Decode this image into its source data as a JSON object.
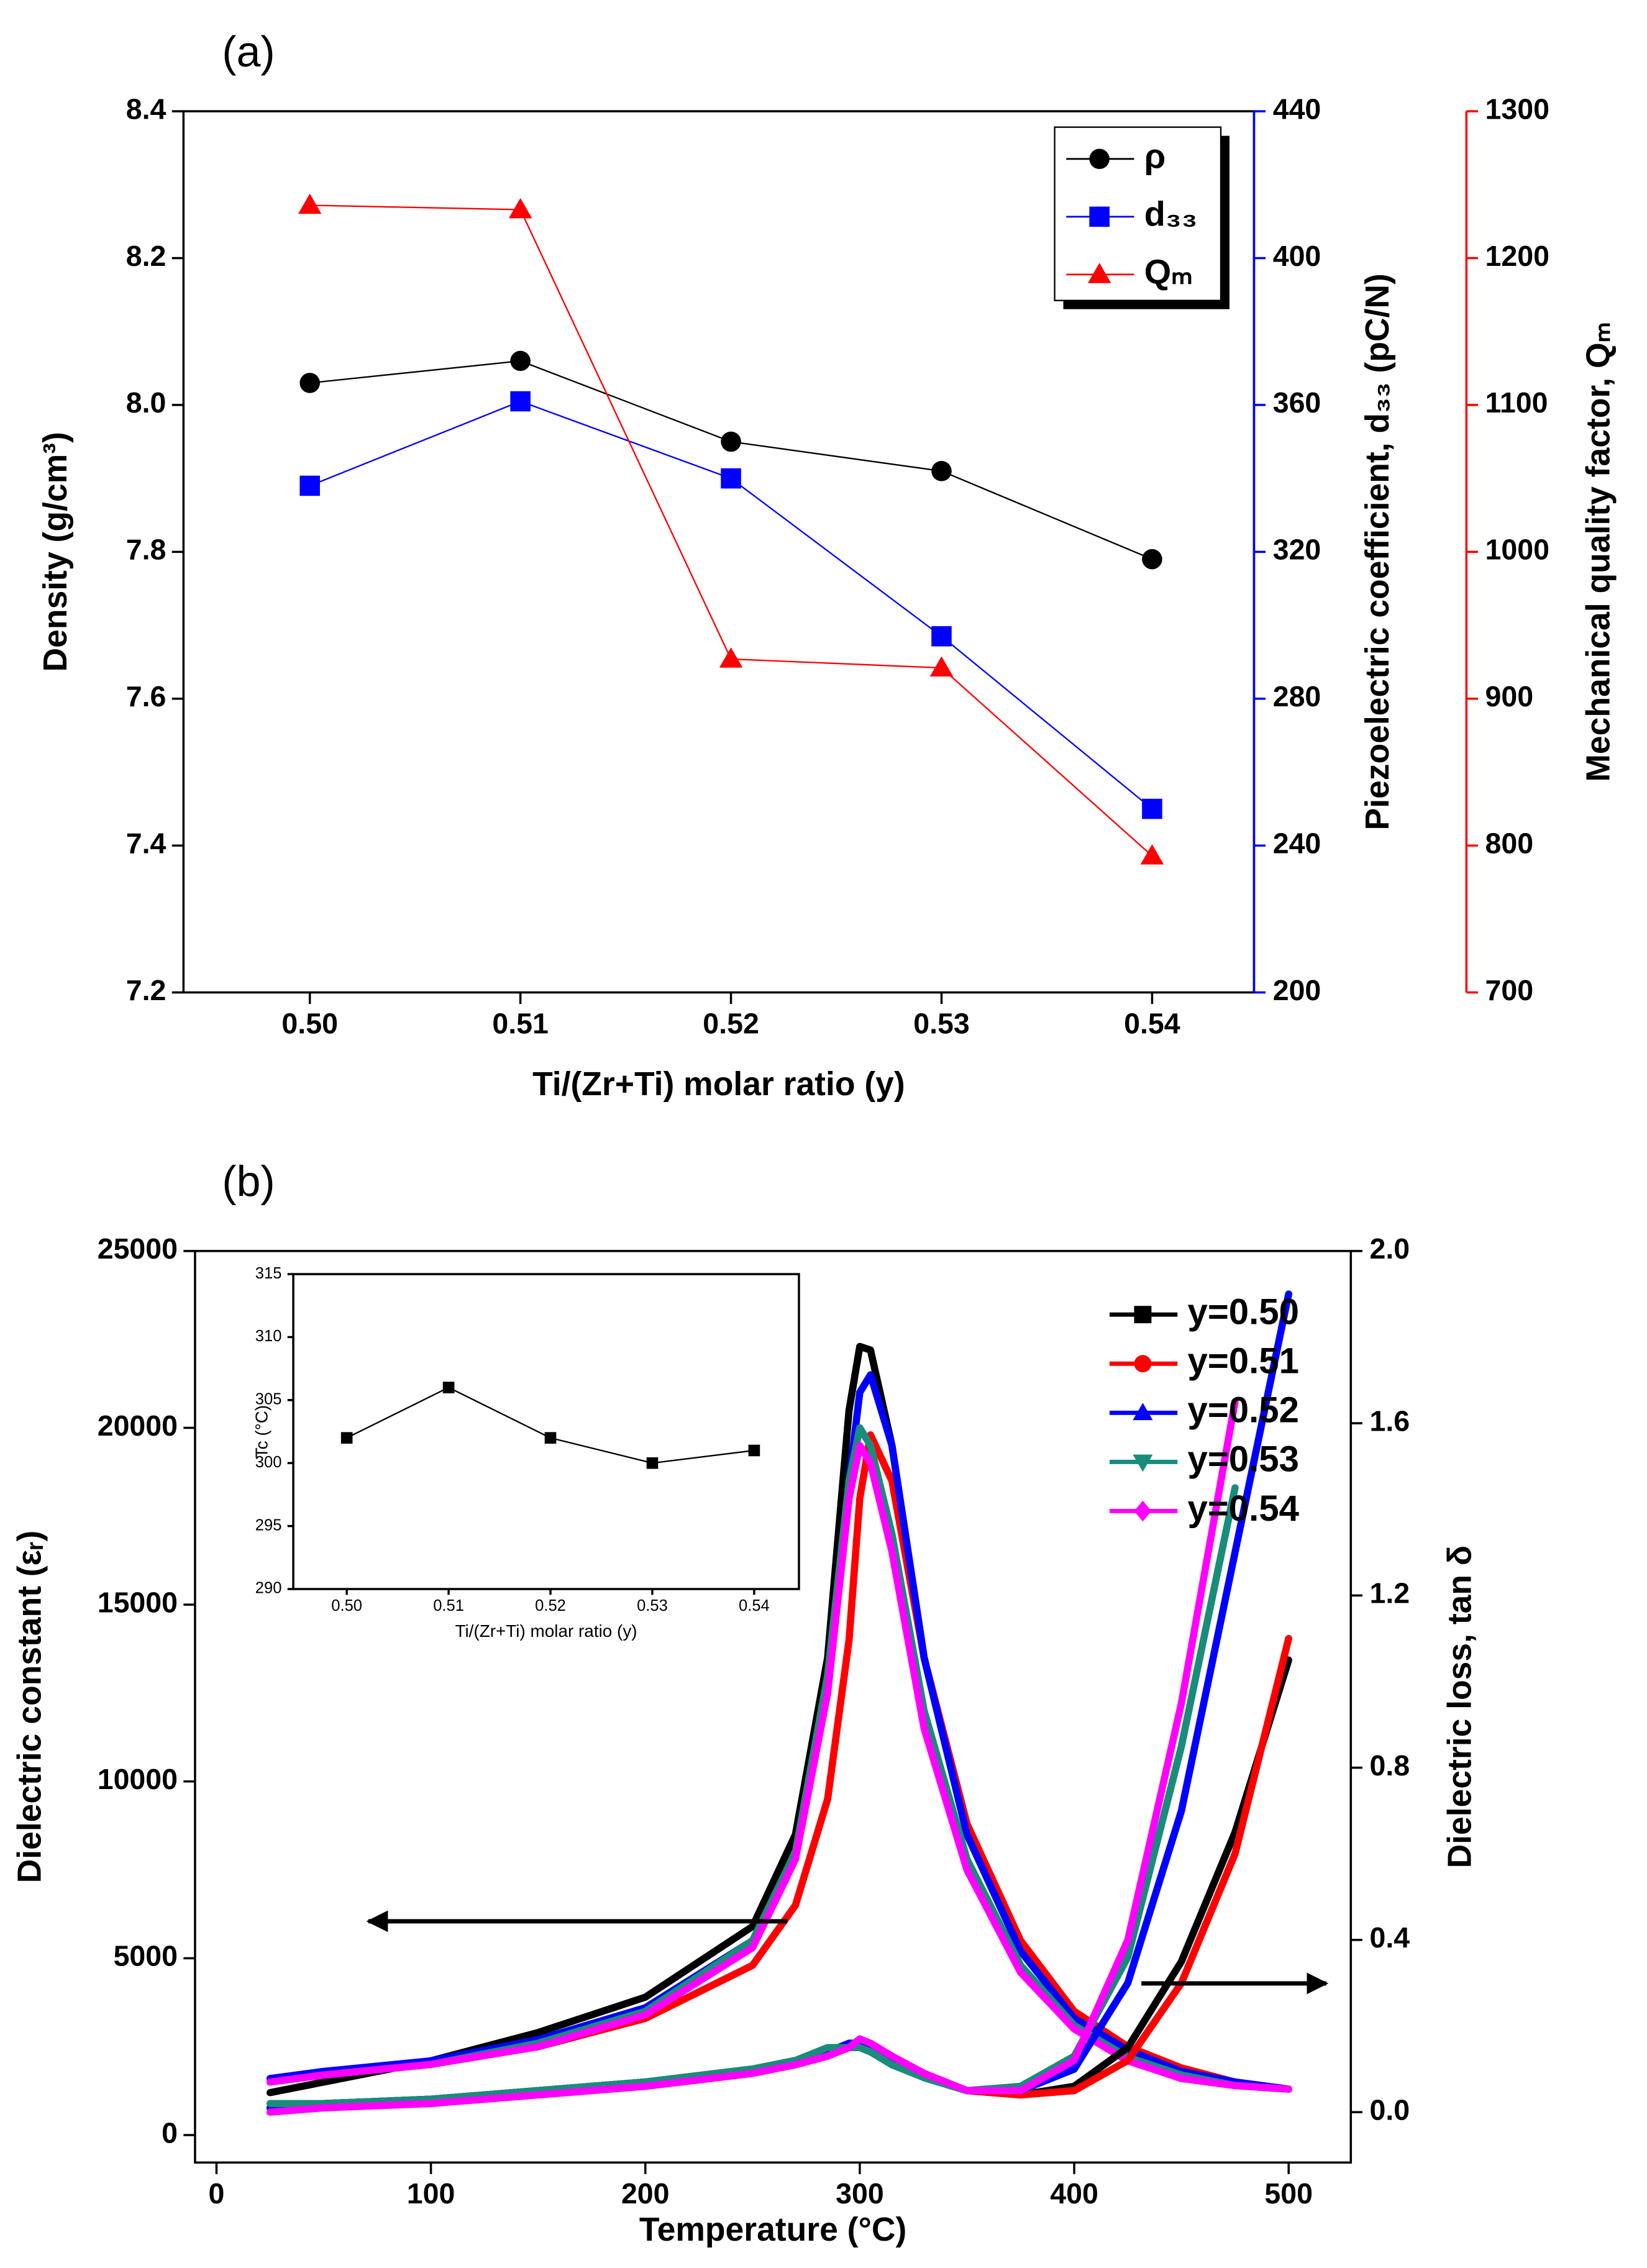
{
  "chart_data": [
    {
      "type": "line",
      "panel_label": "(a)",
      "xlabel": "Ti/(Zr+Ti) molar ratio (y)",
      "ylabel": "Density (g/cm³)",
      "y2label": "Piezoelectric coefficient, d₃₃ (pC/N)",
      "y3label": "Mechanical quality factor, Qₘ",
      "categories": [
        "0.50",
        "0.51",
        "0.52",
        "0.53",
        "0.54"
      ],
      "ylim": [
        7.2,
        8.4
      ],
      "yticks": [
        7.2,
        7.4,
        7.6,
        7.8,
        {
          "value": 8,
          "label": "8.0"
        },
        8.2,
        8.4
      ],
      "y2lim": [
        200,
        440
      ],
      "y2ticks": [
        200,
        240,
        280,
        320,
        360,
        400,
        440
      ],
      "y2color": "#0000ff",
      "y3lim": [
        700,
        1300
      ],
      "y3ticks": [
        700,
        800,
        900,
        1000,
        1100,
        1200,
        1300
      ],
      "y3color": "#ff0000",
      "legend": "upper right",
      "series": [
        {
          "name": "ρ",
          "color": "#000000",
          "marker": "circle",
          "values": [
            8.03,
            8.06,
            7.95,
            7.91,
            7.79
          ]
        },
        {
          "name": "d₃₃",
          "color": "#0000ff",
          "marker": "square",
          "axis": "y2",
          "values": [
            338,
            361,
            340,
            297,
            250
          ]
        },
        {
          "name": "Qₘ",
          "color": "#ff0000",
          "marker": "triangle",
          "axis": "y3",
          "values": [
            1236,
            1233,
            927,
            921,
            793
          ]
        }
      ]
    },
    {
      "type": "line",
      "panel_label": "(b)",
      "xlabel": "Temperature (°C)",
      "ylabel": "Dielectric constant (εᵣ)",
      "y2label": "Dielectric loss, tan δ",
      "x": [
        25,
        50,
        100,
        150,
        200,
        250,
        270,
        285,
        295,
        300,
        305,
        315,
        330,
        350,
        375,
        400,
        425,
        450,
        475,
        500
      ],
      "xlim": [
        -10,
        529
      ],
      "xticks": [
        0,
        100,
        200,
        300,
        400,
        500
      ],
      "ylim": [
        -776,
        25000
      ],
      "yticks": [
        0,
        5000,
        10000,
        15000,
        20000,
        25000
      ],
      "y2lim": [
        -0.117,
        2.0
      ],
      "y2ticks": [
        {
          "value": 0,
          "label": "0.0"
        },
        0.4,
        0.8,
        1.2,
        1.6,
        {
          "value": 2,
          "label": "2.0"
        }
      ],
      "legend": "upper right",
      "series": [
        {
          "name": "y=0.50",
          "color": "#000000",
          "marker": "square",
          "values": [
            1200,
            1500,
            2100,
            2900,
            3900,
            5900,
            8500,
            13500,
            20500,
            22300,
            22200,
            19500,
            13500,
            8500,
            5200,
            3300,
            2400,
            1800,
            1500,
            1300
          ]
        },
        {
          "name": "y=0.51",
          "color": "#ff0000",
          "marker": "circle",
          "values": [
            1500,
            1700,
            2000,
            2500,
            3300,
            4800,
            6500,
            9500,
            14000,
            18000,
            19800,
            18500,
            13500,
            8800,
            5500,
            3500,
            2500,
            1900,
            1500,
            1300
          ]
        },
        {
          "name": "y=0.52",
          "color": "#0000ff",
          "marker": "triangle",
          "values": [
            1600,
            1800,
            2100,
            2700,
            3600,
            5500,
            8000,
            12500,
            18500,
            21000,
            21500,
            19500,
            13500,
            8500,
            5200,
            3300,
            2400,
            1800,
            1500,
            1300
          ]
        },
        {
          "name": "y=0.53",
          "color": "#1a8c7c",
          "marker": "triangle-down",
          "values": [
            1500,
            1700,
            2000,
            2600,
            3500,
            5500,
            8000,
            13000,
            18500,
            20000,
            19500,
            17000,
            12000,
            7800,
            4800,
            3100,
            2200,
            1700,
            1400,
            1300
          ]
        },
        {
          "name": "y=0.54",
          "color": "#ff00ff",
          "marker": "diamond",
          "values": [
            1500,
            1700,
            2000,
            2500,
            3400,
            5300,
            7800,
            12500,
            18000,
            19500,
            19000,
            16500,
            11500,
            7500,
            4600,
            3000,
            2100,
            1600,
            1400,
            1300
          ]
        },
        {
          "color": "#000000",
          "axis": "y2",
          "values": [
            0.01,
            0.02,
            0.03,
            0.05,
            0.07,
            0.1,
            0.12,
            0.14,
            0.16,
            0.16,
            0.15,
            0.12,
            0.08,
            0.05,
            0.04,
            0.06,
            0.15,
            0.35,
            0.65,
            1.05
          ]
        },
        {
          "color": "#ff0000",
          "axis": "y2",
          "values": [
            0.01,
            0.02,
            0.03,
            0.05,
            0.07,
            0.1,
            0.12,
            0.14,
            0.15,
            0.16,
            0.16,
            0.13,
            0.09,
            0.05,
            0.04,
            0.05,
            0.12,
            0.3,
            0.6,
            1.1
          ]
        },
        {
          "color": "#0000ff",
          "axis": "y2",
          "values": [
            0.01,
            0.02,
            0.03,
            0.05,
            0.07,
            0.1,
            0.12,
            0.14,
            0.16,
            0.16,
            0.15,
            0.12,
            0.08,
            0.05,
            0.05,
            0.1,
            0.3,
            0.7,
            1.3,
            1.9
          ]
        },
        {
          "color": "#1a8c7c",
          "axis": "y2",
          "values": [
            0.02,
            0.02,
            0.03,
            0.05,
            0.07,
            0.1,
            0.12,
            0.15,
            0.15,
            0.15,
            0.14,
            0.11,
            0.08,
            0.05,
            0.06,
            0.13,
            0.36,
            0.85,
            1.45,
            null
          ]
        },
        {
          "color": "#ff00ff",
          "axis": "y2",
          "values": [
            0.0,
            0.01,
            0.02,
            0.04,
            0.06,
            0.09,
            0.11,
            0.13,
            0.15,
            0.17,
            0.16,
            0.13,
            0.09,
            0.05,
            0.05,
            0.12,
            0.4,
            0.95,
            1.65,
            null
          ]
        }
      ]
    },
    {
      "type": "line",
      "xlabel": "Ti/(Zr+Ti) molar ratio (y)",
      "ylabel": "Tc (°C)",
      "categories": [
        "0.50",
        "0.51",
        "0.52",
        "0.53",
        "0.54"
      ],
      "ylim": [
        290,
        315
      ],
      "yticks": [
        290,
        295,
        300,
        305,
        310,
        315
      ],
      "series": [
        {
          "color": "#000000",
          "marker": "square",
          "values": [
            302,
            306,
            302,
            300,
            301
          ]
        }
      ]
    }
  ]
}
